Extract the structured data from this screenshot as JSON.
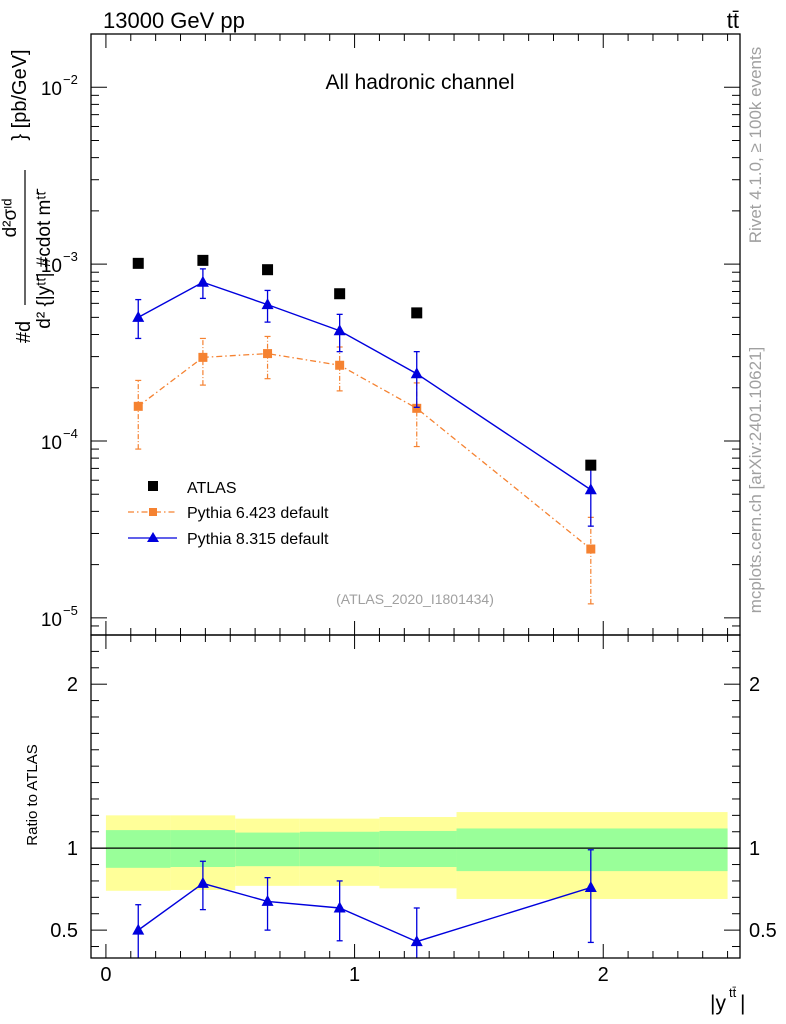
{
  "header": {
    "left": "13000 GeV pp",
    "right": "tt̄"
  },
  "side": {
    "rivet": "Rivet 4.1.0, ≥ 100k events",
    "mcplots": "mcplots.cern.ch [arXiv:2401.10621]"
  },
  "colors": {
    "atlas": "#000000",
    "pythia6": "#f58231",
    "pythia8": "#0000dd",
    "band_inner": "#99ff99",
    "band_outer": "#ffff99",
    "ref_label": "#a0a0a0"
  },
  "chart_data": [
    {
      "type": "scatter",
      "name": "main",
      "title": "All hadronic channel",
      "ylabel_main": "#d d²σᶦᵈ / d² {|y^tt̄|} #cdot m^tt̄ } [pb/GeV]",
      "ylabel_parts": {
        "hash_d": "#d",
        "num": "d²σᶦᵈ",
        "den": "d² {|yᵗᵗ̄| #cdot mᵗᵗ̄",
        "unit": "} [pb/GeV]"
      },
      "yscale": "log",
      "ylim": [
        8e-06,
        0.02
      ],
      "xlim": [
        -0.06,
        2.55
      ],
      "yticks": [
        {
          "value": 1e-05,
          "base": "10",
          "exp": "−5"
        },
        {
          "value": 0.0001,
          "base": "10",
          "exp": "−4"
        },
        {
          "value": 0.001,
          "base": "10",
          "exp": "−3"
        },
        {
          "value": 0.01,
          "base": "10",
          "exp": "−2"
        }
      ],
      "reference_label": "(ATLAS_2020_I1801434)",
      "legend": {
        "position": "lower-left",
        "entries": [
          "ATLAS",
          "Pythia 6.423 default",
          "Pythia 8.315 default"
        ]
      },
      "series": [
        {
          "name": "ATLAS",
          "style": "markers-square",
          "x": [
            0.13,
            0.39,
            0.65,
            0.94,
            1.25,
            1.95
          ],
          "y": [
            0.00101,
            0.00105,
            0.00093,
            0.00068,
            0.00053,
            7.3e-05
          ]
        },
        {
          "name": "Pythia 6.423 default",
          "style": "dashdot-square",
          "x": [
            0.13,
            0.39,
            0.65,
            0.94,
            1.25,
            1.95
          ],
          "y": [
            0.000157,
            0.000297,
            0.000312,
            0.000268,
            0.000153,
            2.45e-05
          ],
          "yerr_low": [
            9e-05,
            0.000207,
            0.000225,
            0.000192,
            9.3e-05,
            1.2e-05
          ],
          "yerr_high": [
            0.00022,
            0.00038,
            0.00039,
            0.00034,
            0.000213,
            3.7e-05
          ]
        },
        {
          "name": "Pythia 8.315 default",
          "style": "solid-triangle",
          "x": [
            0.13,
            0.39,
            0.65,
            0.94,
            1.25,
            1.95
          ],
          "y": [
            0.0005,
            0.00079,
            0.00059,
            0.00042,
            0.00024,
            5.3e-05
          ],
          "yerr_low": [
            0.00038,
            0.00064,
            0.00047,
            0.00032,
            0.000155,
            3.3e-05
          ],
          "yerr_high": [
            0.00063,
            0.00094,
            0.00071,
            0.00052,
            0.00032,
            7.5e-05
          ]
        }
      ]
    },
    {
      "type": "scatter",
      "name": "ratio",
      "ylabel": "Ratio to ATLAS",
      "xlabel": "|y^tt̄|",
      "xlabel_parts": {
        "base": "|y",
        "sup": "tt̄",
        "end": "|"
      },
      "ylim": [
        0.33,
        2.3
      ],
      "xlim": [
        -0.06,
        2.55
      ],
      "yticks": [
        {
          "value": 0.5,
          "label": "0.5"
        },
        {
          "value": 1,
          "label": "1"
        },
        {
          "value": 2,
          "label": "2"
        }
      ],
      "xticks": [
        {
          "value": 0,
          "label": "0"
        },
        {
          "value": 1,
          "label": "1"
        },
        {
          "value": 2,
          "label": "2"
        }
      ],
      "bins": [
        {
          "xlo": 0.0,
          "xhi": 0.26,
          "inner": [
            0.88,
            1.11
          ],
          "outer": [
            0.74,
            1.2
          ]
        },
        {
          "xlo": 0.26,
          "xhi": 0.52,
          "inner": [
            0.885,
            1.11
          ],
          "outer": [
            0.745,
            1.2
          ]
        },
        {
          "xlo": 0.52,
          "xhi": 0.78,
          "inner": [
            0.89,
            1.095
          ],
          "outer": [
            0.77,
            1.18
          ]
        },
        {
          "xlo": 0.78,
          "xhi": 1.1,
          "inner": [
            0.89,
            1.1
          ],
          "outer": [
            0.77,
            1.18
          ]
        },
        {
          "xlo": 1.1,
          "xhi": 1.41,
          "inner": [
            0.885,
            1.105
          ],
          "outer": [
            0.755,
            1.19
          ]
        },
        {
          "xlo": 1.41,
          "xhi": 2.5,
          "inner": [
            0.86,
            1.12
          ],
          "outer": [
            0.69,
            1.22
          ]
        }
      ],
      "series": [
        {
          "name": "Pythia 8.315 default",
          "style": "solid-triangle",
          "x": [
            0.13,
            0.39,
            0.65,
            0.94,
            1.25,
            1.95
          ],
          "y": [
            0.5,
            0.785,
            0.675,
            0.635,
            0.43,
            0.76
          ],
          "yerr_low": [
            0.33,
            0.625,
            0.5,
            0.435,
            0.33,
            0.425
          ],
          "yerr_high": [
            0.655,
            0.92,
            0.82,
            0.8,
            0.635,
            0.99
          ]
        }
      ]
    }
  ]
}
